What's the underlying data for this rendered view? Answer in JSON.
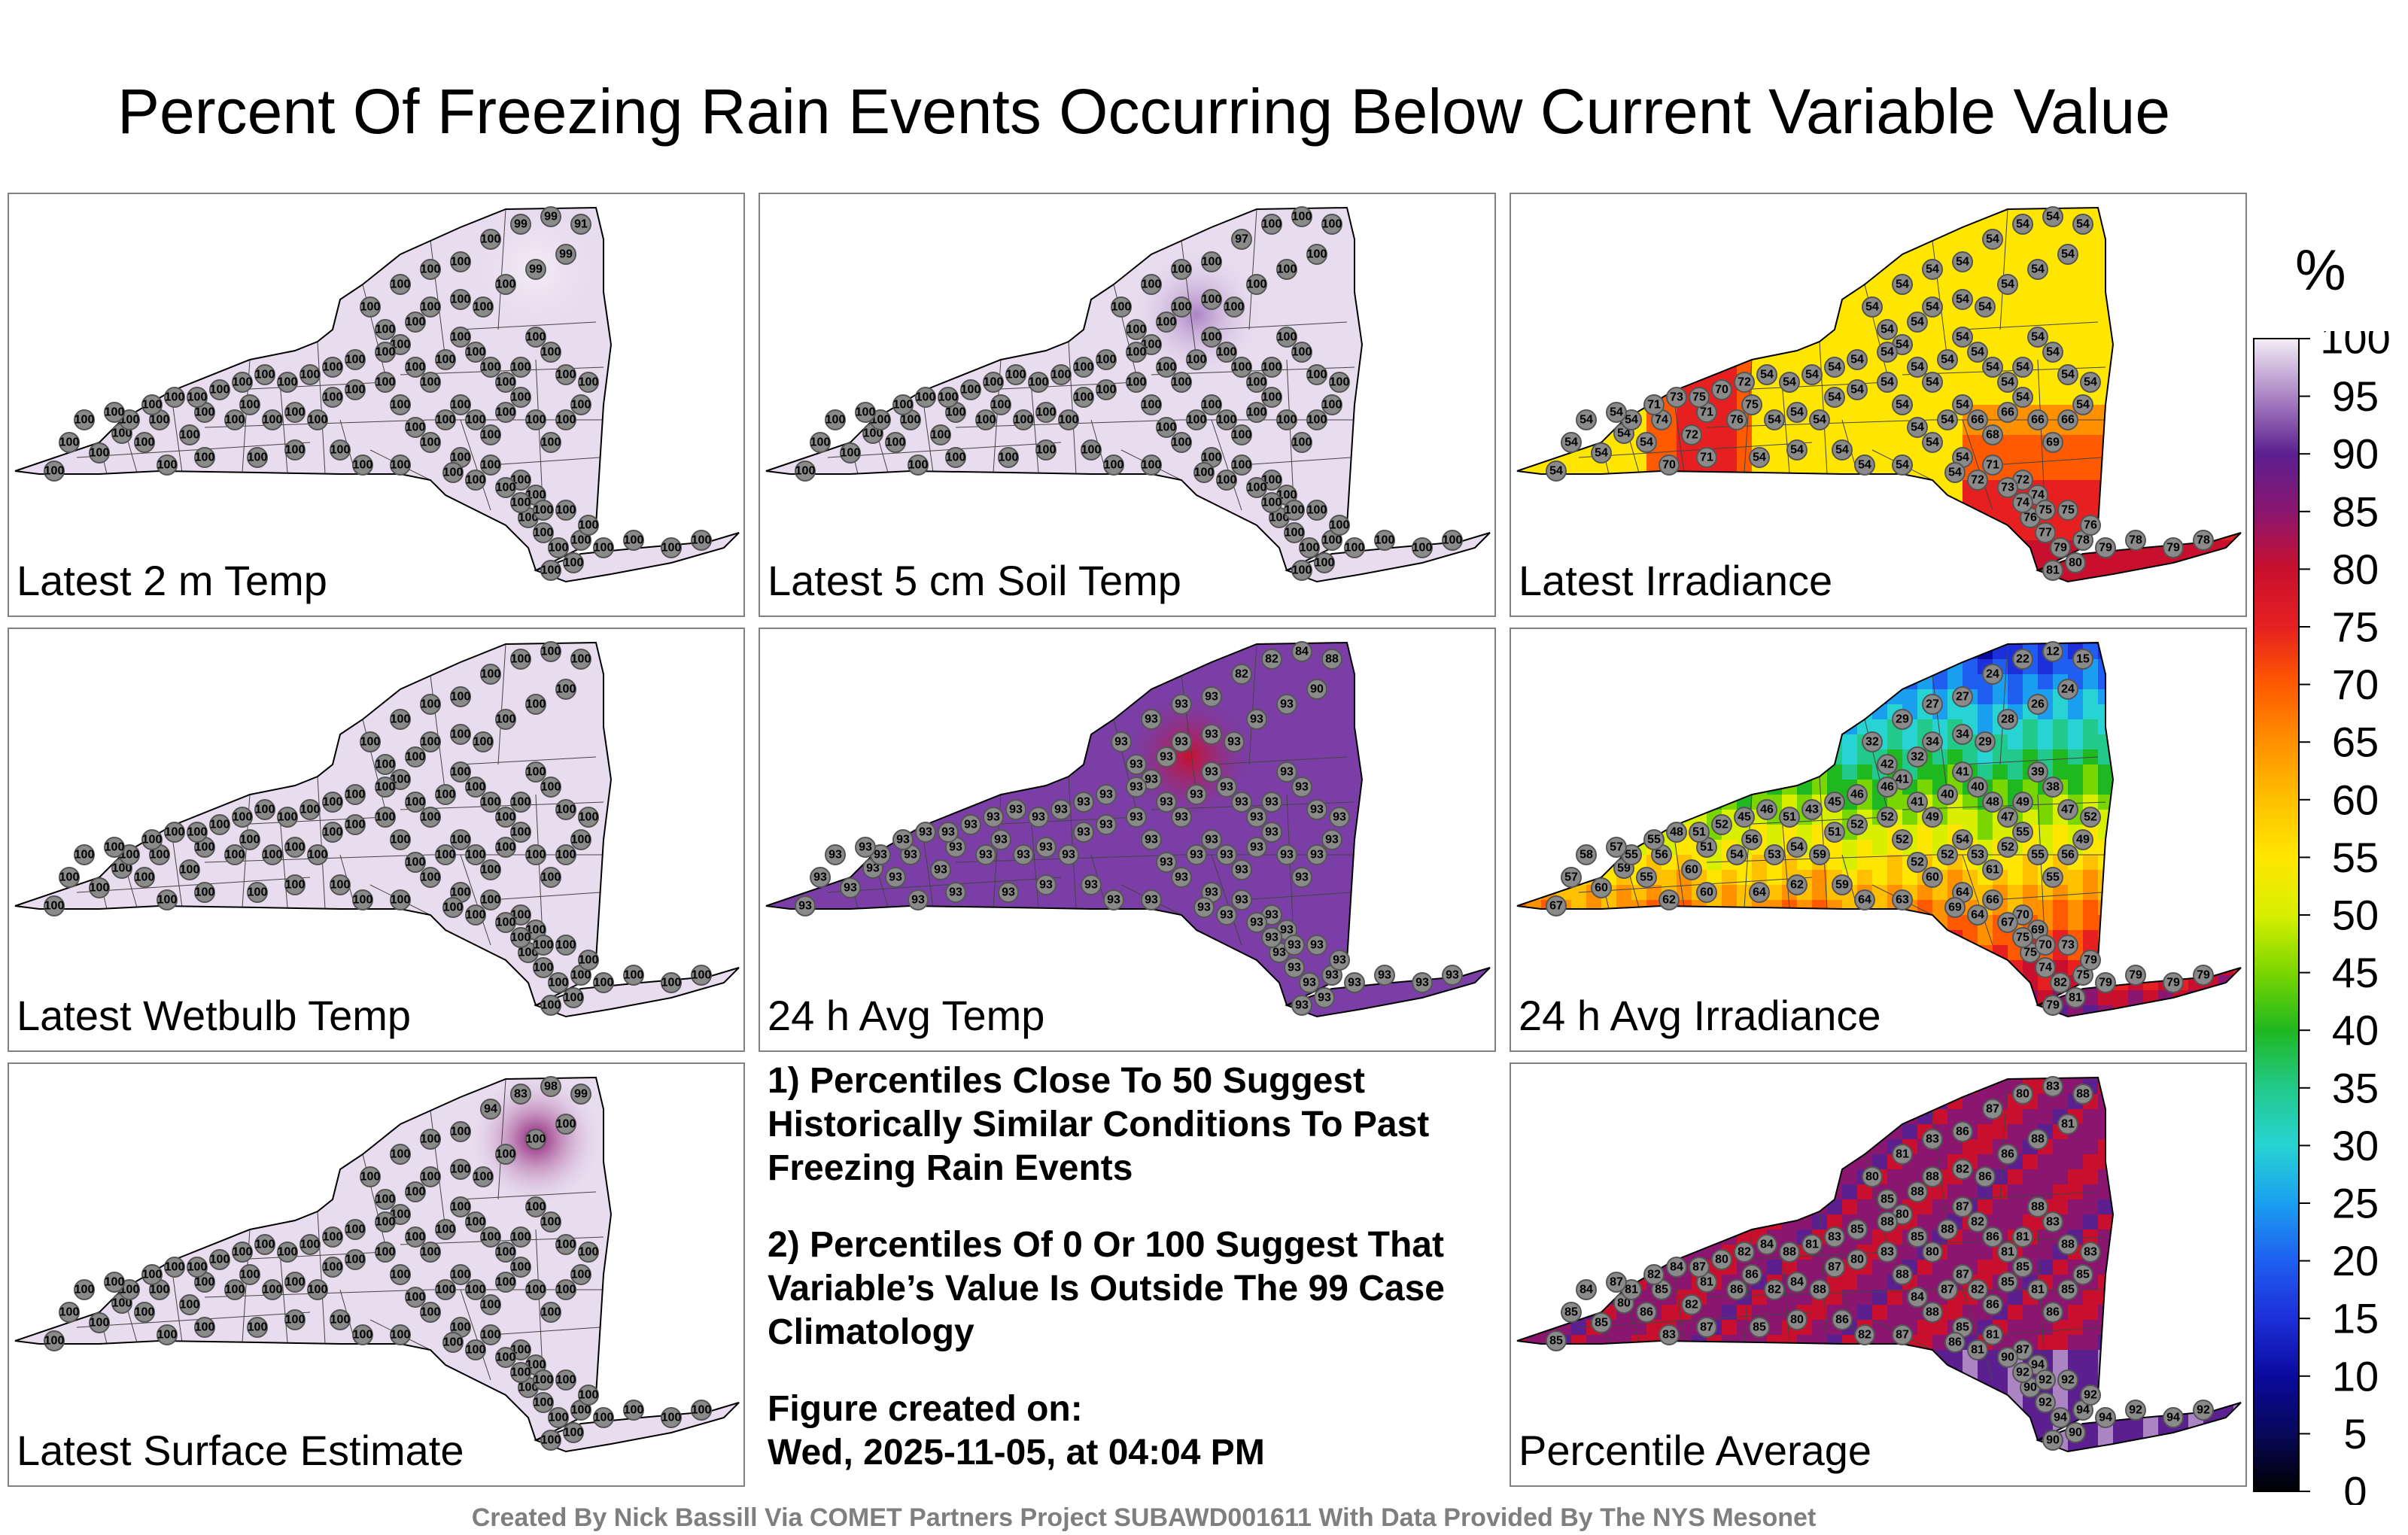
{
  "title": "Percent Of Freezing Rain Events Occurring Below Current Variable Value",
  "panels": [
    {
      "id": "p1",
      "label": "Latest 2 m Temp",
      "fill": "#e8dcef",
      "mode": "const",
      "value": 100,
      "hot": [
        {
          "v": 99,
          "s": [
            100,
            99,
            99,
            91,
            99,
            99
          ]
        }
      ]
    },
    {
      "id": "p2",
      "label": "Latest 5 cm Soil Temp",
      "fill": "#e8dcef",
      "mode": "const",
      "value": 100,
      "hot": [
        {
          "v": 97,
          "s": [
            97
          ]
        }
      ]
    },
    {
      "id": "p3",
      "label": "Latest Irradiance",
      "mode": "irr",
      "value": 54
    },
    {
      "id": "p4",
      "label": "Latest Wetbulb Temp",
      "fill": "#e8dcef",
      "mode": "const",
      "value": 100,
      "hot": []
    },
    {
      "id": "p5",
      "label": "24 h Avg Temp",
      "fill": "#7a3ea6",
      "mode": "const",
      "value": 93,
      "hot": [
        {
          "v": 82,
          "s": [
            82,
            82,
            84,
            88,
            90
          ]
        }
      ]
    },
    {
      "id": "p6",
      "label": "24 h Avg Irradiance",
      "mode": "irr24",
      "value": 35
    },
    {
      "id": "p7",
      "label": "Latest Surface Estimate",
      "fill": "#e8dcef",
      "mode": "const",
      "value": 100,
      "hot": [
        {
          "v": 83,
          "s": [
            94,
            83,
            98,
            99
          ]
        }
      ]
    },
    {
      "id": "p8",
      "label": "Percentile Average",
      "mode": "avg",
      "value": 85
    }
  ],
  "notes": [
    "1) Percentiles Close To 50 Suggest Historically Similar Conditions To Past Freezing Rain Events",
    "2) Percentiles Of 0 Or 100 Suggest That Variable’s Value Is Outside The 99 Case Climatology"
  ],
  "figure_created": {
    "label": "Figure created on:",
    "value": "Wed, 2025-11-05, at 04:04 PM"
  },
  "colorbar": {
    "unit": "%",
    "ticks": [
      100,
      95,
      90,
      85,
      80,
      75,
      70,
      65,
      60,
      55,
      50,
      45,
      40,
      35,
      30,
      25,
      20,
      15,
      10,
      5,
      0
    ],
    "colors": [
      "#f3eef6",
      "#ab84c4",
      "#5b1f8f",
      "#8a1670",
      "#c8102e",
      "#e62020",
      "#ff5a00",
      "#ff9000",
      "#ffc000",
      "#ffe600",
      "#d8ef00",
      "#7ad600",
      "#1fb820",
      "#22c98a",
      "#27d3d3",
      "#1a9ff0",
      "#1f5ef0",
      "#1c2fd8",
      "#0a0a9e",
      "#08085a",
      "#000000"
    ]
  },
  "credit": "Created By Nick Bassill Via COMET Partners Project SUBAWD001611 With Data Provided By The NYS Mesonet"
}
